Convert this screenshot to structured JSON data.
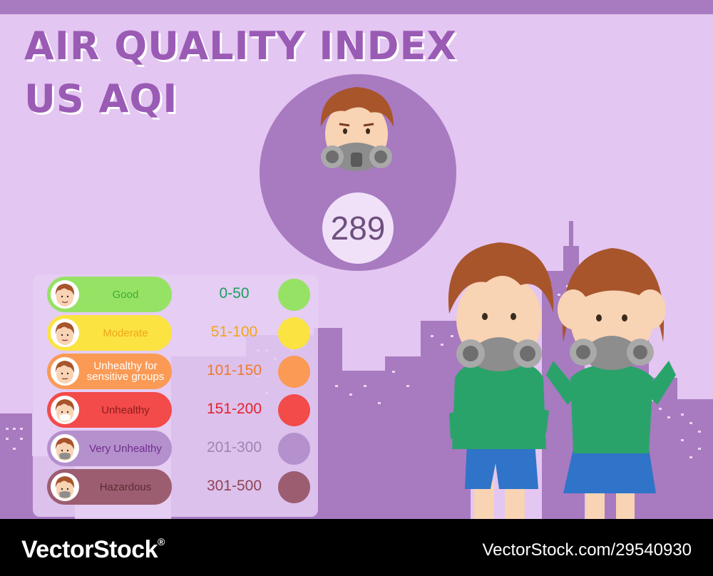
{
  "header": {
    "title_line_1": "AIR QUALITY INDEX",
    "title_line_2": "US AQI"
  },
  "current_reading": {
    "value": "289",
    "mascot": "boy-with-gas-mask-icon"
  },
  "scale": [
    {
      "label": "Good",
      "range": "0-50",
      "label_color": "#3cab37",
      "range_color": "#1a9f5c",
      "pill_color": "#96e264",
      "dot_color": "#96e264",
      "face": "smiling-face-icon"
    },
    {
      "label": "Moderate",
      "range": "51-100",
      "label_color": "#f0a61c",
      "range_color": "#f0a61c",
      "pill_color": "#fbe341",
      "dot_color": "#fbe341",
      "face": "neutral-face-icon"
    },
    {
      "label": "Unhealthy for sensitive groups",
      "range": "101-150",
      "label_color": "#ffffff",
      "range_color": "#ee7a2c",
      "pill_color": "#fa9a55",
      "dot_color": "#fa9a55",
      "face": "worried-face-icon"
    },
    {
      "label": "Unhealthy",
      "range": "151-200",
      "label_color": "#8b1d1d",
      "range_color": "#e4222e",
      "pill_color": "#f34a4a",
      "dot_color": "#f34a4a",
      "face": "face-mask-icon"
    },
    {
      "label": "Very Unhealthy",
      "range": "201-300",
      "label_color": "#6f2e8c",
      "range_color": "#9f85b3",
      "pill_color": "#b490cd",
      "dot_color": "#b490cd",
      "face": "gas-mask-face-icon"
    },
    {
      "label": "Hazardous",
      "range": "301-500",
      "label_color": "#5a2b30",
      "range_color": "#8f4455",
      "pill_color": "#9d5d71",
      "dot_color": "#9d5d71",
      "face": "hazard-mask-face-icon"
    }
  ],
  "colors": {
    "background": "#e3c6f1",
    "accent": "#a87ac0",
    "title": "#9a5bb5",
    "skyline": "#a87ac0"
  },
  "footer": {
    "brand": "VectorStock",
    "brand_mark": "®",
    "image_id": "VectorStock.com/29540930"
  }
}
